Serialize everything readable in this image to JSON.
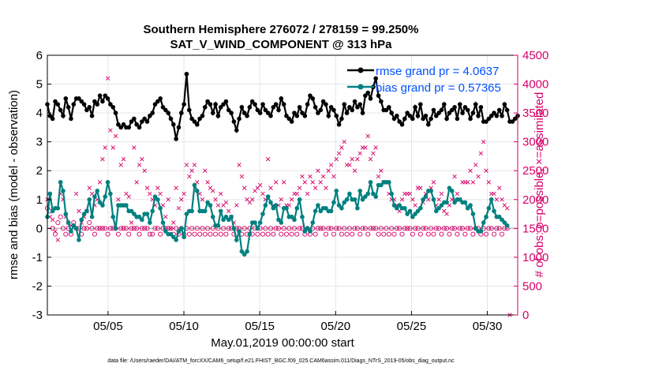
{
  "chart_data": {
    "type": "line",
    "title": "Southern Hemisphere 276072 / 278159 = 99.250%",
    "subtitle": "SAT_V_WIND_COMPONENT @ 313 hPa",
    "xlabel": "May.01,2019 00:00:00 start",
    "ylabel": "rmse and bias (model - observation)",
    "y2label": "# of obs: o=possible; ×=assimilated",
    "footnote": "data file: /Users/raeder/DAI/ATM_forcXX/CAM6_setup/f.e21.FHIST_BGC.f09_025.CAM6assim.011/Diags_NTrS_2019-05/obs_diag_output.nc",
    "x_ticks": [
      "05/05",
      "05/10",
      "05/15",
      "05/20",
      "05/25",
      "05/30"
    ],
    "x_tick_days": [
      5,
      10,
      15,
      20,
      25,
      30
    ],
    "xlim_days": [
      1,
      32
    ],
    "ylim": [
      -3,
      6
    ],
    "y_ticks": [
      "-3",
      "-2",
      "-1",
      "0",
      "1",
      "2",
      "3",
      "4",
      "5",
      "6"
    ],
    "y2lim": [
      0,
      4500
    ],
    "y2_ticks": [
      "0",
      "500",
      "1000",
      "1500",
      "2000",
      "2500",
      "3000",
      "3500",
      "4000",
      "4500"
    ],
    "grid": true,
    "legend_position": "top-right",
    "colors": {
      "rmse": "#000000",
      "bias": "#008080",
      "obs": "#d6006a",
      "legend_text": "#0050ff",
      "zero_line": "#bbbbbb"
    },
    "series": [
      {
        "name": "rmse grand pr = 4.0637",
        "values": [
          4.3,
          3.9,
          3.8,
          4.4,
          4.3,
          4.1,
          3.9,
          4.5,
          4.2,
          3.8,
          4.3,
          4.5,
          4.5,
          4.4,
          4.3,
          4.1,
          4.2,
          3.9,
          4.4,
          4.3,
          4.6,
          4.4,
          4.6,
          4.5,
          4.3,
          4.2,
          4.0,
          3.6,
          3.5,
          3.6,
          3.5,
          3.5,
          3.7,
          3.8,
          3.6,
          3.5,
          3.7,
          3.8,
          3.7,
          3.9,
          4.0,
          4.3,
          4.4,
          4.5,
          4.2,
          4.1,
          4.0,
          3.8,
          3.6,
          3.1,
          3.5,
          4.0,
          4.3,
          5.35,
          4.1,
          3.8,
          3.7,
          3.6,
          3.8,
          3.9,
          4.2,
          4.4,
          4.3,
          4.0,
          4.3,
          3.9,
          4.2,
          4.3,
          4.4,
          4.1,
          4.0,
          3.7,
          3.4,
          3.8,
          4.2,
          4.0,
          3.9,
          4.2,
          4.4,
          4.3,
          4.1,
          4.0,
          4.3,
          4.1,
          4.0,
          3.9,
          4.2,
          4.3,
          4.1,
          4.5,
          4.3,
          3.9,
          3.8,
          3.7,
          4.0,
          3.9,
          4.2,
          4.0,
          3.9,
          4.3,
          4.6,
          4.5,
          4.2,
          4.0,
          4.1,
          4.4,
          4.3,
          3.9,
          4.2,
          4.1,
          3.9,
          3.6,
          3.8,
          4.3,
          4.0,
          4.2,
          4.1,
          4.4,
          4.2,
          4.3,
          4.0,
          4.6,
          4.7,
          4.5,
          4.9,
          5.2,
          4.6,
          4.4,
          4.1,
          4.1,
          4.2,
          4.0,
          3.8,
          3.9,
          3.7,
          3.6,
          3.8,
          4.0,
          3.9,
          3.8,
          4.2,
          3.9,
          4.3,
          3.8,
          3.9,
          3.6,
          3.8,
          4.1,
          3.9,
          4.0,
          4.1,
          4.3,
          3.8,
          4.0,
          4.1,
          4.2,
          3.8,
          4.3,
          4.0,
          4.2,
          4.1,
          3.8,
          4.0,
          4.3,
          3.9,
          4.2,
          3.7,
          3.7,
          3.8,
          3.9,
          4.0,
          3.9,
          4.1,
          3.9,
          4.3,
          4.1,
          3.7,
          3.7,
          3.8,
          3.9
        ]
      },
      {
        "name": "bias grand pr = 0.57365",
        "values": [
          0.4,
          1.2,
          0.6,
          0.7,
          0.7,
          1.6,
          1.3,
          0.5,
          0.2,
          -0.1,
          0.1,
          0.0,
          -0.4,
          0.3,
          0.5,
          0.6,
          1.0,
          0.4,
          1.1,
          1.3,
          0.9,
          0.8,
          1.1,
          1.6,
          1.2,
          0.4,
          0.0,
          0.8,
          0.8,
          0.8,
          0.8,
          0.6,
          0.6,
          0.5,
          0.4,
          0.4,
          0.3,
          0.5,
          0.5,
          0.2,
          0.6,
          1.1,
          1.0,
          0.7,
          0.2,
          -0.1,
          -0.2,
          -0.2,
          -0.3,
          -0.4,
          -0.1,
          0.0,
          -0.3,
          0.5,
          0.6,
          0.6,
          1.5,
          1.3,
          0.6,
          0.6,
          0.6,
          0.9,
          0.8,
          0.4,
          0.1,
          0.1,
          0.6,
          0.3,
          0.4,
          0.3,
          0.4,
          0.0,
          -0.4,
          -0.1,
          -0.8,
          -0.9,
          -0.8,
          -0.2,
          0.2,
          0.2,
          0.0,
          0.2,
          0.5,
          0.8,
          1.1,
          0.9,
          0.7,
          0.8,
          0.3,
          0.2,
          0.7,
          0.7,
          0.4,
          0.4,
          0.3,
          0.7,
          1.0,
          0.4,
          -0.1,
          0.0,
          -0.1,
          0.2,
          0.6,
          0.8,
          0.6,
          0.7,
          0.7,
          0.6,
          0.6,
          0.9,
          1.3,
          0.8,
          0.7,
          0.9,
          1.0,
          1.2,
          1.0,
          1.0,
          0.7,
          1.3,
          1.0,
          1.1,
          1.2,
          1.6,
          1.2,
          1.1,
          1.5,
          1.5,
          1.6,
          1.6,
          1.6,
          1.2,
          0.8,
          0.7,
          0.8,
          0.7,
          0.7,
          0.5,
          0.6,
          0.4,
          0.5,
          0.6,
          0.7,
          1.0,
          1.1,
          1.3,
          1.3,
          1.0,
          0.6,
          0.7,
          0.8,
          0.9,
          0.9,
          1.4,
          1.3,
          0.9,
          1.0,
          1.0,
          0.9,
          0.9,
          0.7,
          0.8,
          0.5,
          0.0,
          -0.1,
          -0.1,
          0.2,
          0.4,
          0.7,
          1.0,
          0.6,
          0.4,
          0.4,
          0.3,
          0.2,
          0.1
        ]
      },
      {
        "name": "obs possible",
        "values": [
          1850,
          1800,
          1500,
          1400,
          1600,
          1700,
          1500,
          1400,
          1500,
          1400,
          1600,
          1500,
          1500,
          1400,
          1500,
          1500,
          1600,
          1500,
          1400,
          1500,
          1500,
          1500,
          1500,
          1400,
          1500,
          1500,
          1500,
          1400,
          1500,
          1500,
          1500,
          1400,
          1500,
          1500,
          1500,
          1400,
          1500,
          1500,
          1500,
          1400,
          1400,
          1500,
          1500,
          1400,
          1500,
          1500,
          1500,
          1500,
          1400,
          1500,
          1400,
          1500,
          1400,
          1500,
          1400,
          1500,
          1400,
          1500,
          1400,
          1500,
          1400,
          1500,
          1400,
          1500,
          1400,
          1500,
          1400,
          1500,
          1400,
          1500,
          1500,
          1400,
          1500,
          1500,
          1400,
          1500,
          1400,
          1500,
          1400,
          1500,
          1400,
          1500,
          1400,
          1500,
          1400,
          1500,
          1400,
          1500,
          1500,
          1400,
          1500,
          1400,
          1500,
          1400,
          1500,
          1400,
          1500,
          1500,
          1400,
          1500,
          1400,
          1500,
          1400,
          1500,
          1500,
          1500,
          1400,
          1500,
          1500,
          1400,
          1500,
          1500,
          1400,
          1500,
          1400,
          1500,
          1400,
          1500,
          1500,
          1400,
          1500,
          1500,
          1400,
          1500,
          1500,
          1500,
          1400,
          1500,
          1400,
          1500,
          1400,
          1500,
          1400,
          1500,
          1500,
          1400,
          1500,
          1500,
          1500,
          1400,
          1500,
          1500,
          1400,
          1500,
          1500,
          1400,
          1500,
          1400,
          1500,
          1500,
          1400,
          1500,
          1500,
          1400,
          1500,
          1500,
          1400,
          1500,
          1500,
          1400,
          1500,
          1500,
          1400,
          1500,
          1500,
          1400,
          1500,
          1400,
          1500,
          1500,
          1400,
          1500,
          1500,
          1400,
          1500,
          1500
        ]
      },
      {
        "name": "obs assimilated",
        "values": [
          2000,
          1700,
          1650,
          1450,
          1300,
          2100,
          2000,
          1700,
          1600,
          1550,
          1550,
          2100,
          1800,
          1600,
          1700,
          1800,
          2200,
          2100,
          1900,
          2000,
          2300,
          2700,
          2900,
          4100,
          3200,
          2900,
          3100,
          2000,
          2600,
          2700,
          2100,
          2050,
          1600,
          2900,
          2300,
          2600,
          2700,
          2500,
          2200,
          2100,
          2000,
          1900,
          2200,
          2100,
          1900,
          1700,
          2000,
          1500,
          1600,
          2200,
          1850,
          2000,
          2100,
          2600,
          2400,
          2500,
          2600,
          2300,
          2100,
          2000,
          2500,
          2300,
          2200,
          2150,
          2000,
          1900,
          2100,
          1900,
          1950,
          1800,
          1700,
          1600,
          1900,
          2600,
          2400,
          2200,
          2000,
          1950,
          2000,
          2150,
          2200,
          2250,
          2100,
          2000,
          2700,
          2200,
          1900,
          2300,
          1900,
          2000,
          2300,
          1900,
          1900,
          2000,
          2100,
          2100,
          2200,
          2400,
          2300,
          2100,
          2400,
          2300,
          2200,
          2500,
          2300,
          2400,
          2200,
          2500,
          2600,
          2400,
          2700,
          2800,
          2900,
          3000,
          2600,
          2600,
          2700,
          2500,
          2700,
          2800,
          2900,
          2900,
          3100,
          2700,
          2800,
          2900,
          2400,
          2500,
          2300,
          2300,
          2100,
          2000,
          2000,
          1900,
          1800,
          2000,
          2100,
          2100,
          2100,
          2000,
          1900,
          2200,
          2200,
          1950,
          2100,
          2000,
          2200,
          2300,
          1900,
          2000,
          2100,
          1800,
          1750,
          1900,
          2000,
          2400,
          2100,
          2000,
          2300,
          2300,
          2300,
          2500,
          2300,
          2600,
          2400,
          2800,
          3000,
          2500,
          2300,
          2100,
          2100,
          2000,
          2200,
          2000,
          1900,
          1850,
          0
        ]
      }
    ]
  }
}
